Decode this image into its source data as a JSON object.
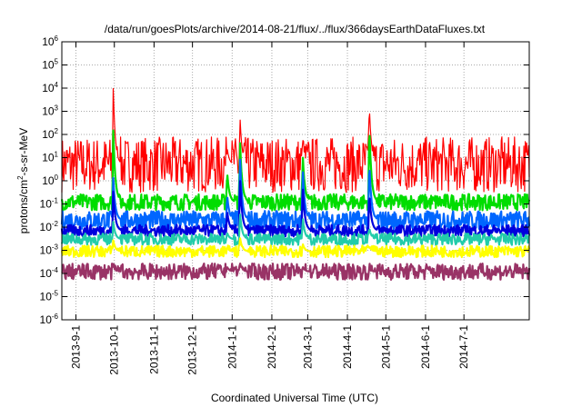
{
  "chart_data": {
    "type": "line",
    "title": "/data/run/goesPlots/archive/2014-08-21/flux/../flux/366daysEarthDataFluxes.txt",
    "xlabel": "Coordinated Universal Time (UTC)",
    "ylabel": {
      "prefix": "protons/cm",
      "sup": "2",
      "suffix": "-s-sr-MeV"
    },
    "yscale": "log",
    "ylim": [
      1e-06,
      1000000.0
    ],
    "xlim": [
      "2013-08-21",
      "2014-08-21"
    ],
    "grid": true,
    "y_ticks": [
      {
        "exp": "-6"
      },
      {
        "exp": "-5"
      },
      {
        "exp": "-4"
      },
      {
        "exp": "-3"
      },
      {
        "exp": "-2"
      },
      {
        "exp": "-1"
      },
      {
        "exp": "0"
      },
      {
        "exp": "1"
      },
      {
        "exp": "2"
      },
      {
        "exp": "3"
      },
      {
        "exp": "4"
      },
      {
        "exp": "5"
      },
      {
        "exp": "6"
      }
    ],
    "x_ticks": [
      "2013-9-1",
      "2013-10-1",
      "2013-11-1",
      "2013-12-1",
      "2014-1-1",
      "2014-2-1",
      "2014-3-1",
      "2014-4-1",
      "2014-5-1",
      "2014-6-1",
      "2014-7-1"
    ],
    "x_tick_dates": [
      "2013-09-01",
      "2013-10-01",
      "2013-11-01",
      "2013-12-01",
      "2014-01-01",
      "2014-02-01",
      "2014-03-01",
      "2014-04-01",
      "2014-05-01",
      "2014-06-01",
      "2014-07-01"
    ],
    "event_dates": [
      "2013-09-30",
      "2013-12-28",
      "2014-01-07",
      "2014-02-25",
      "2014-04-18"
    ],
    "series": [
      {
        "color": "#ff0000",
        "baseline": 5,
        "spread": 1.2,
        "peaks": [
          20000.0,
          30,
          800,
          80,
          3000
        ]
      },
      {
        "color": "#00dd00",
        "baseline": 0.12,
        "spread": 0.35,
        "peaks": [
          300,
          3,
          100,
          20,
          500
        ]
      },
      {
        "color": "#0066ff",
        "baseline": 0.02,
        "spread": 0.4,
        "peaks": [
          2,
          0.3,
          20,
          5,
          10
        ]
      },
      {
        "color": "#0000dd",
        "baseline": 0.007,
        "spread": 0.25,
        "peaks": [
          0.5,
          0.06,
          2,
          0.8,
          0.4
        ]
      },
      {
        "color": "#22ccaa",
        "baseline": 0.003,
        "spread": 0.25,
        "peaks": [
          0.02,
          0.006,
          0.05,
          0.03,
          0.01
        ]
      },
      {
        "color": "#ffff00",
        "baseline": 0.0009,
        "spread": 0.25,
        "peaks": [
          0.003,
          0.0012,
          0.004,
          0.002,
          0.0015
        ]
      },
      {
        "color": "#993366",
        "baseline": 0.00012,
        "spread": 0.35,
        "peaks": [
          0.0002,
          0.0002,
          0.0003,
          0.0002,
          0.00015
        ]
      }
    ]
  }
}
